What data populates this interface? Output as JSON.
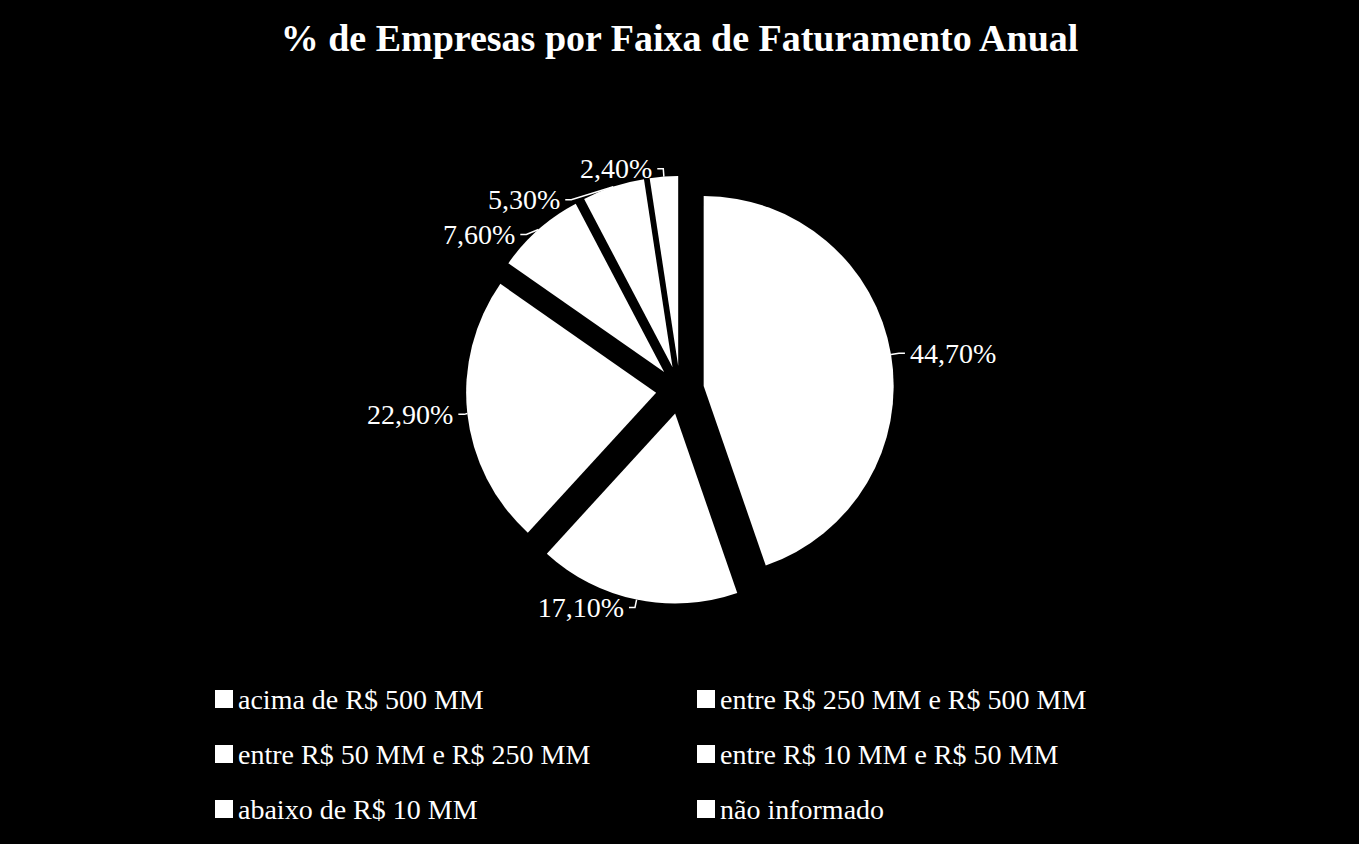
{
  "chart_data": {
    "type": "pie",
    "title": "% de Empresas por Faixa de Faturamento Anual",
    "categories": [
      "acima de R$ 500 MM",
      "entre R$ 250 MM e R$ 500 MM",
      "entre R$ 50 MM e R$ 250 MM",
      "entre R$ 10 MM e R$ 50 MM",
      "abaixo de R$ 10 MM",
      "não informado"
    ],
    "values": [
      44.7,
      17.1,
      22.9,
      7.6,
      5.3,
      2.4
    ],
    "value_labels": [
      "44,70%",
      "17,10%",
      "22,90%",
      "7,60%",
      "5,30%",
      "2,40%"
    ],
    "colors": [
      "#ffffff",
      "#ffffff",
      "#ffffff",
      "#ffffff",
      "#ffffff",
      "#ffffff"
    ],
    "data_labels": true,
    "legend": "bottom"
  }
}
